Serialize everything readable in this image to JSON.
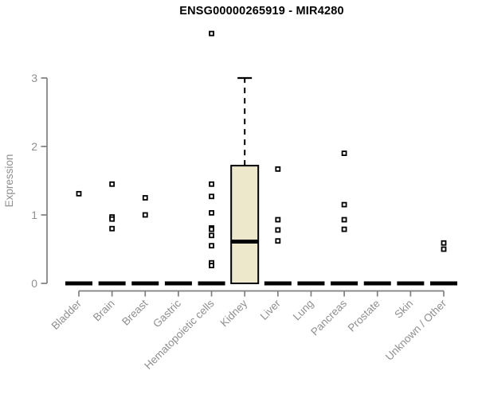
{
  "chart_data": {
    "type": "boxplot",
    "title": "ENSG00000265919 - MIR4280",
    "ylabel": "Expression",
    "xlabel": "",
    "ylim": [
      0,
      3
    ],
    "yticks": [
      0,
      1,
      2,
      3
    ],
    "grid": false,
    "legend": false,
    "categories": [
      "Bladder",
      "Brain",
      "Breast",
      "Gastric",
      "Hematopoietic cells",
      "Kidney",
      "Liver",
      "Lung",
      "Pancreas",
      "Prostate",
      "Skin",
      "Unknown / Other"
    ],
    "boxes": [
      {
        "category": "Bladder",
        "q1": 0,
        "median": 0,
        "q3": 0,
        "whisker_low": 0,
        "whisker_high": 0,
        "outliers": [
          1.31
        ]
      },
      {
        "category": "Brain",
        "q1": 0,
        "median": 0,
        "q3": 0,
        "whisker_low": 0,
        "whisker_high": 0,
        "outliers": [
          1.45,
          0.97,
          0.94,
          0.8
        ]
      },
      {
        "category": "Breast",
        "q1": 0,
        "median": 0,
        "q3": 0,
        "whisker_low": 0,
        "whisker_high": 0,
        "outliers": [
          1.25,
          1.0
        ]
      },
      {
        "category": "Gastric",
        "q1": 0,
        "median": 0,
        "q3": 0,
        "whisker_low": 0,
        "whisker_high": 0,
        "outliers": []
      },
      {
        "category": "Hematopoietic cells",
        "q1": 0,
        "median": 0,
        "q3": 0,
        "whisker_low": 0,
        "whisker_high": 0,
        "outliers": [
          3.65,
          1.45,
          1.27,
          1.03,
          0.81,
          0.79,
          0.7,
          0.55,
          0.3,
          0.26
        ]
      },
      {
        "category": "Kidney",
        "q1": 0,
        "median": 0.61,
        "q3": 1.72,
        "whisker_low": 0,
        "whisker_high": 3.0,
        "outliers": []
      },
      {
        "category": "Liver",
        "q1": 0,
        "median": 0,
        "q3": 0,
        "whisker_low": 0,
        "whisker_high": 0,
        "outliers": [
          1.67,
          0.93,
          0.78,
          0.62
        ]
      },
      {
        "category": "Lung",
        "q1": 0,
        "median": 0,
        "q3": 0,
        "whisker_low": 0,
        "whisker_high": 0,
        "outliers": []
      },
      {
        "category": "Pancreas",
        "q1": 0,
        "median": 0,
        "q3": 0,
        "whisker_low": 0,
        "whisker_high": 0,
        "outliers": [
          1.9,
          1.15,
          0.93,
          0.79
        ]
      },
      {
        "category": "Prostate",
        "q1": 0,
        "median": 0,
        "q3": 0,
        "whisker_low": 0,
        "whisker_high": 0,
        "outliers": []
      },
      {
        "category": "Skin",
        "q1": 0,
        "median": 0,
        "q3": 0,
        "whisker_low": 0,
        "whisker_high": 0,
        "outliers": []
      },
      {
        "category": "Unknown / Other",
        "q1": 0,
        "median": 0,
        "q3": 0,
        "whisker_low": 0,
        "whisker_high": 0,
        "outliers": [
          0.59,
          0.5
        ]
      }
    ],
    "colors": {
      "box_fill": "#EDE7CC",
      "box_border": "#000000",
      "median": "#000000",
      "whisker": "#000000",
      "outlier_stroke": "#000000",
      "outlier_fill": "#ffffff",
      "axis": "#7f7f7f",
      "axis_text": "#8f8f8f",
      "title_text": "#000000",
      "background": "#ffffff"
    }
  }
}
